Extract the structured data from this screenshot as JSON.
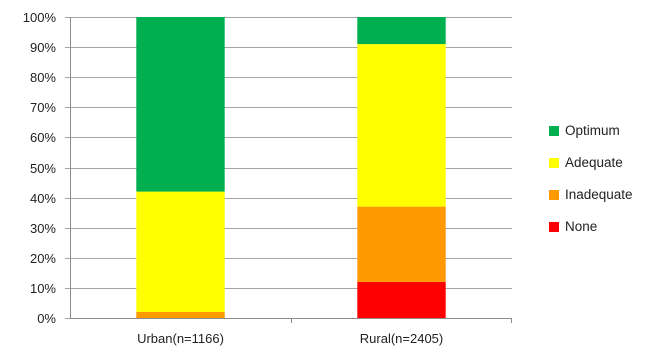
{
  "chart_data": {
    "type": "bar",
    "stacked": true,
    "categories": [
      "Urban(n=1166)",
      "Rural(n=2405)"
    ],
    "series": [
      {
        "name": "None",
        "color": "#ff0000",
        "values": [
          0,
          12
        ]
      },
      {
        "name": "Inadequate",
        "color": "#ff9900",
        "values": [
          2,
          25
        ]
      },
      {
        "name": "Adequate",
        "color": "#ffff00",
        "values": [
          40,
          54
        ]
      },
      {
        "name": "Optimum",
        "color": "#00b050",
        "values": [
          58,
          9
        ]
      }
    ],
    "y_tick_labels": [
      "0%",
      "10%",
      "20%",
      "30%",
      "40%",
      "50%",
      "60%",
      "70%",
      "80%",
      "90%",
      "100%"
    ],
    "ylim": [
      0,
      100
    ],
    "grid": true,
    "legend_position": "right",
    "legend_order": [
      "Optimum",
      "Adequate",
      "Inadequate",
      "None"
    ],
    "title": "",
    "xlabel": "",
    "ylabel": ""
  }
}
